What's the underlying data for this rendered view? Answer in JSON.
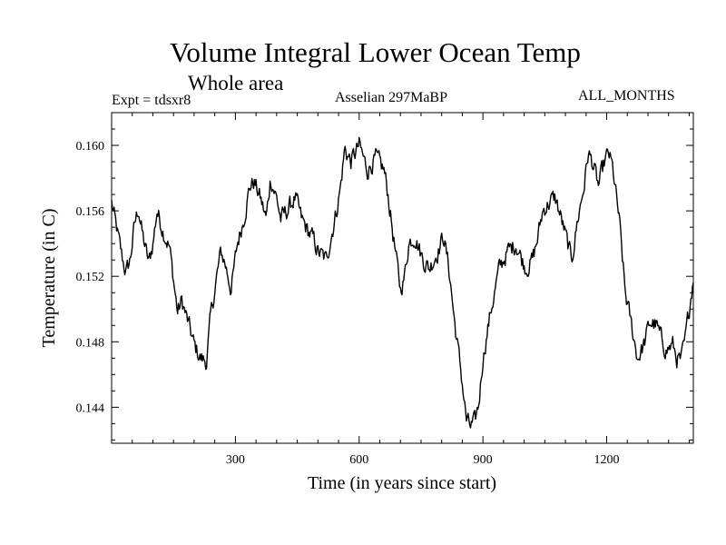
{
  "chart_data": {
    "type": "line",
    "title": "Volume Integral Lower Ocean Temp",
    "subtitle": "Whole area",
    "annotations": {
      "left": "Expt = tdsxr8",
      "center": "Asselian 297MaBP",
      "right": "ALL_MONTHS"
    },
    "xlabel": "Time (in years since start)",
    "ylabel": "Temperature (in C)",
    "xlim": [
      0,
      1410
    ],
    "ylim": [
      0.1418,
      0.162
    ],
    "xticks": [
      300,
      600,
      900,
      1200
    ],
    "yticks": [
      0.144,
      0.148,
      0.152,
      0.156,
      0.16
    ],
    "ytick_labels": [
      "0.144",
      "0.148",
      "0.152",
      "0.156",
      "0.160"
    ],
    "grid": false,
    "series": [
      {
        "name": "Temperature",
        "color": "#000000",
        "noise": 0.0007,
        "x": [
          0,
          15,
          25,
          35,
          45,
          55,
          65,
          75,
          90,
          100,
          110,
          125,
          140,
          150,
          160,
          170,
          185,
          200,
          215,
          230,
          240,
          255,
          265,
          275,
          290,
          305,
          320,
          335,
          345,
          360,
          375,
          385,
          400,
          410,
          425,
          445,
          460,
          475,
          490,
          500,
          520,
          530,
          545,
          555,
          565,
          580,
          600,
          620,
          640,
          660,
          670,
          680,
          690,
          700,
          710,
          720,
          735,
          755,
          770,
          790,
          805,
          820,
          830,
          840,
          850,
          860,
          870,
          880,
          890,
          900,
          920,
          940,
          960,
          980,
          995,
          1005,
          1020,
          1030,
          1045,
          1060,
          1075,
          1090,
          1105,
          1115,
          1130,
          1145,
          1155,
          1165,
          1180,
          1195,
          1205,
          1215,
          1230,
          1245,
          1260,
          1275,
          1290,
          1305,
          1320,
          1335,
          1345,
          1360,
          1370,
          1380,
          1390,
          1400,
          1410
        ],
        "y": [
          0.1565,
          0.1545,
          0.1532,
          0.1522,
          0.153,
          0.155,
          0.1562,
          0.1545,
          0.1528,
          0.154,
          0.156,
          0.1548,
          0.1538,
          0.1518,
          0.1498,
          0.1505,
          0.1492,
          0.1478,
          0.147,
          0.1468,
          0.1495,
          0.152,
          0.1535,
          0.1528,
          0.1512,
          0.154,
          0.1555,
          0.1575,
          0.1578,
          0.1568,
          0.1555,
          0.158,
          0.1568,
          0.1555,
          0.156,
          0.1568,
          0.1555,
          0.1548,
          0.1542,
          0.1535,
          0.153,
          0.1542,
          0.156,
          0.1575,
          0.1598,
          0.159,
          0.16,
          0.1585,
          0.1592,
          0.1585,
          0.157,
          0.155,
          0.153,
          0.1512,
          0.152,
          0.154,
          0.1545,
          0.153,
          0.1525,
          0.1535,
          0.1545,
          0.152,
          0.1495,
          0.1475,
          0.1455,
          0.1432,
          0.1428,
          0.143,
          0.1442,
          0.147,
          0.15,
          0.1525,
          0.1535,
          0.154,
          0.153,
          0.1525,
          0.153,
          0.154,
          0.156,
          0.1565,
          0.1568,
          0.1555,
          0.154,
          0.153,
          0.1555,
          0.1575,
          0.1595,
          0.159,
          0.1575,
          0.159,
          0.1595,
          0.1585,
          0.1555,
          0.151,
          0.149,
          0.147,
          0.1478,
          0.1492,
          0.149,
          0.148,
          0.1475,
          0.1478,
          0.147,
          0.1468,
          0.148,
          0.15,
          0.152
        ]
      }
    ]
  }
}
